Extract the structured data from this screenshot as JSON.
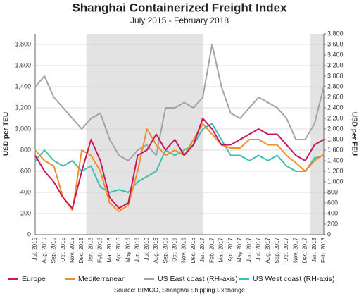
{
  "chart_data": {
    "type": "line",
    "title": "Shanghai Containerized Freight Index",
    "subtitle": "July 2015 - February 2018",
    "y_label": "USD per TEU",
    "y2_label": "USD per FEU",
    "source": "Source: BIMCO, Shanghai Shipping Exchange",
    "categories": [
      "Jul. 2015",
      "Aug. 2015",
      "Sep. 2015",
      "Oct. 2015",
      "Nov. 2015",
      "Dec. 2015",
      "Jan. 2016",
      "Feb. 2016",
      "Mar. 2016",
      "Apr. 2016",
      "May 2016",
      "Jun. 2016",
      "Jul. 2016",
      "Aug. 2016",
      "Sep. 2016",
      "Oct. 2016",
      "Nov. 2016",
      "Dec. 2016",
      "Jan. 2017",
      "Feb. 2017",
      "Mar. 2017",
      "Apr. 2017",
      "May 2017",
      "Jun. 2017",
      "Jul. 2017",
      "Aug. 2017",
      "Sep. 2017",
      "Oct. 2017",
      "Nov. 2017",
      "Dec. 2017",
      "Jan. 2018",
      "Feb. 2018"
    ],
    "shaded_ranges": [
      [
        "Jan. 2016",
        "Jan. 2017"
      ],
      [
        "Jan. 2018",
        "Feb. 2018"
      ]
    ],
    "shade_color": "#e3e3e3",
    "series": [
      {
        "name": "Europe",
        "color": "#c8175d",
        "values": [
          750,
          600,
          500,
          350,
          250,
          600,
          900,
          700,
          350,
          250,
          300,
          750,
          800,
          950,
          800,
          900,
          750,
          850,
          1100,
          1000,
          850,
          850,
          900,
          950,
          1000,
          950,
          950,
          850,
          750,
          700,
          850,
          900
        ]
      },
      {
        "name": "Mediterranean",
        "color": "#f28e2b",
        "values": [
          800,
          700,
          650,
          350,
          230,
          800,
          750,
          600,
          300,
          220,
          280,
          600,
          1000,
          850,
          750,
          800,
          750,
          900,
          1050,
          950,
          850,
          820,
          820,
          900,
          900,
          850,
          850,
          750,
          680,
          600,
          700,
          760
        ]
      },
      {
        "name": "US East coast (RH-axis)",
        "color": "#a0a4a8",
        "axis": "y2",
        "values": [
          2800,
          3000,
          2600,
          2400,
          2200,
          2000,
          2200,
          2300,
          1800,
          1500,
          1400,
          1600,
          1700,
          1500,
          2400,
          2400,
          2500,
          2400,
          2600,
          3600,
          2800,
          2300,
          2200,
          2400,
          2600,
          2500,
          2400,
          2200,
          1800,
          1800,
          2100,
          2800
        ]
      },
      {
        "name": "US West coast (RH-axis)",
        "color": "#3cbfae",
        "axis": "y2",
        "values": [
          1400,
          1600,
          1400,
          1300,
          1400,
          1200,
          1300,
          900,
          800,
          850,
          800,
          1000,
          1100,
          1200,
          1600,
          1500,
          1600,
          1700,
          2000,
          2100,
          1800,
          1500,
          1500,
          1400,
          1500,
          1400,
          1500,
          1300,
          1200,
          1200,
          1450,
          1500
        ]
      }
    ],
    "ylim": [
      0,
      1900
    ],
    "yticks": [
      0,
      200,
      400,
      600,
      800,
      {
        "value": 1000,
        "label": "1,000"
      },
      {
        "value": 1200,
        "label": "1,200"
      },
      {
        "value": 1400,
        "label": "1,400"
      },
      {
        "value": 1600,
        "label": "1,600"
      },
      {
        "value": 1800,
        "label": "1,800"
      }
    ],
    "y2lim": [
      0,
      3800
    ],
    "y2ticks": [
      0,
      200,
      400,
      600,
      800,
      {
        "value": 1000,
        "label": "1,000"
      },
      {
        "value": 1200,
        "label": "1,200"
      },
      {
        "value": 1400,
        "label": "1,400"
      },
      {
        "value": 1600,
        "label": "1,600"
      },
      {
        "value": 1800,
        "label": "1,800"
      },
      {
        "value": 2000,
        "label": "2,000"
      },
      {
        "value": 2200,
        "label": "2,200"
      },
      {
        "value": 2400,
        "label": "2,400"
      },
      {
        "value": 2600,
        "label": "2,600"
      },
      {
        "value": 2800,
        "label": "2,800"
      },
      {
        "value": 3000,
        "label": "3,000"
      },
      {
        "value": 3200,
        "label": "3,200"
      },
      {
        "value": 3400,
        "label": "3,400"
      },
      {
        "value": 3600,
        "label": "3,600"
      },
      {
        "value": 3800,
        "label": "3,800"
      }
    ],
    "grid": true
  }
}
